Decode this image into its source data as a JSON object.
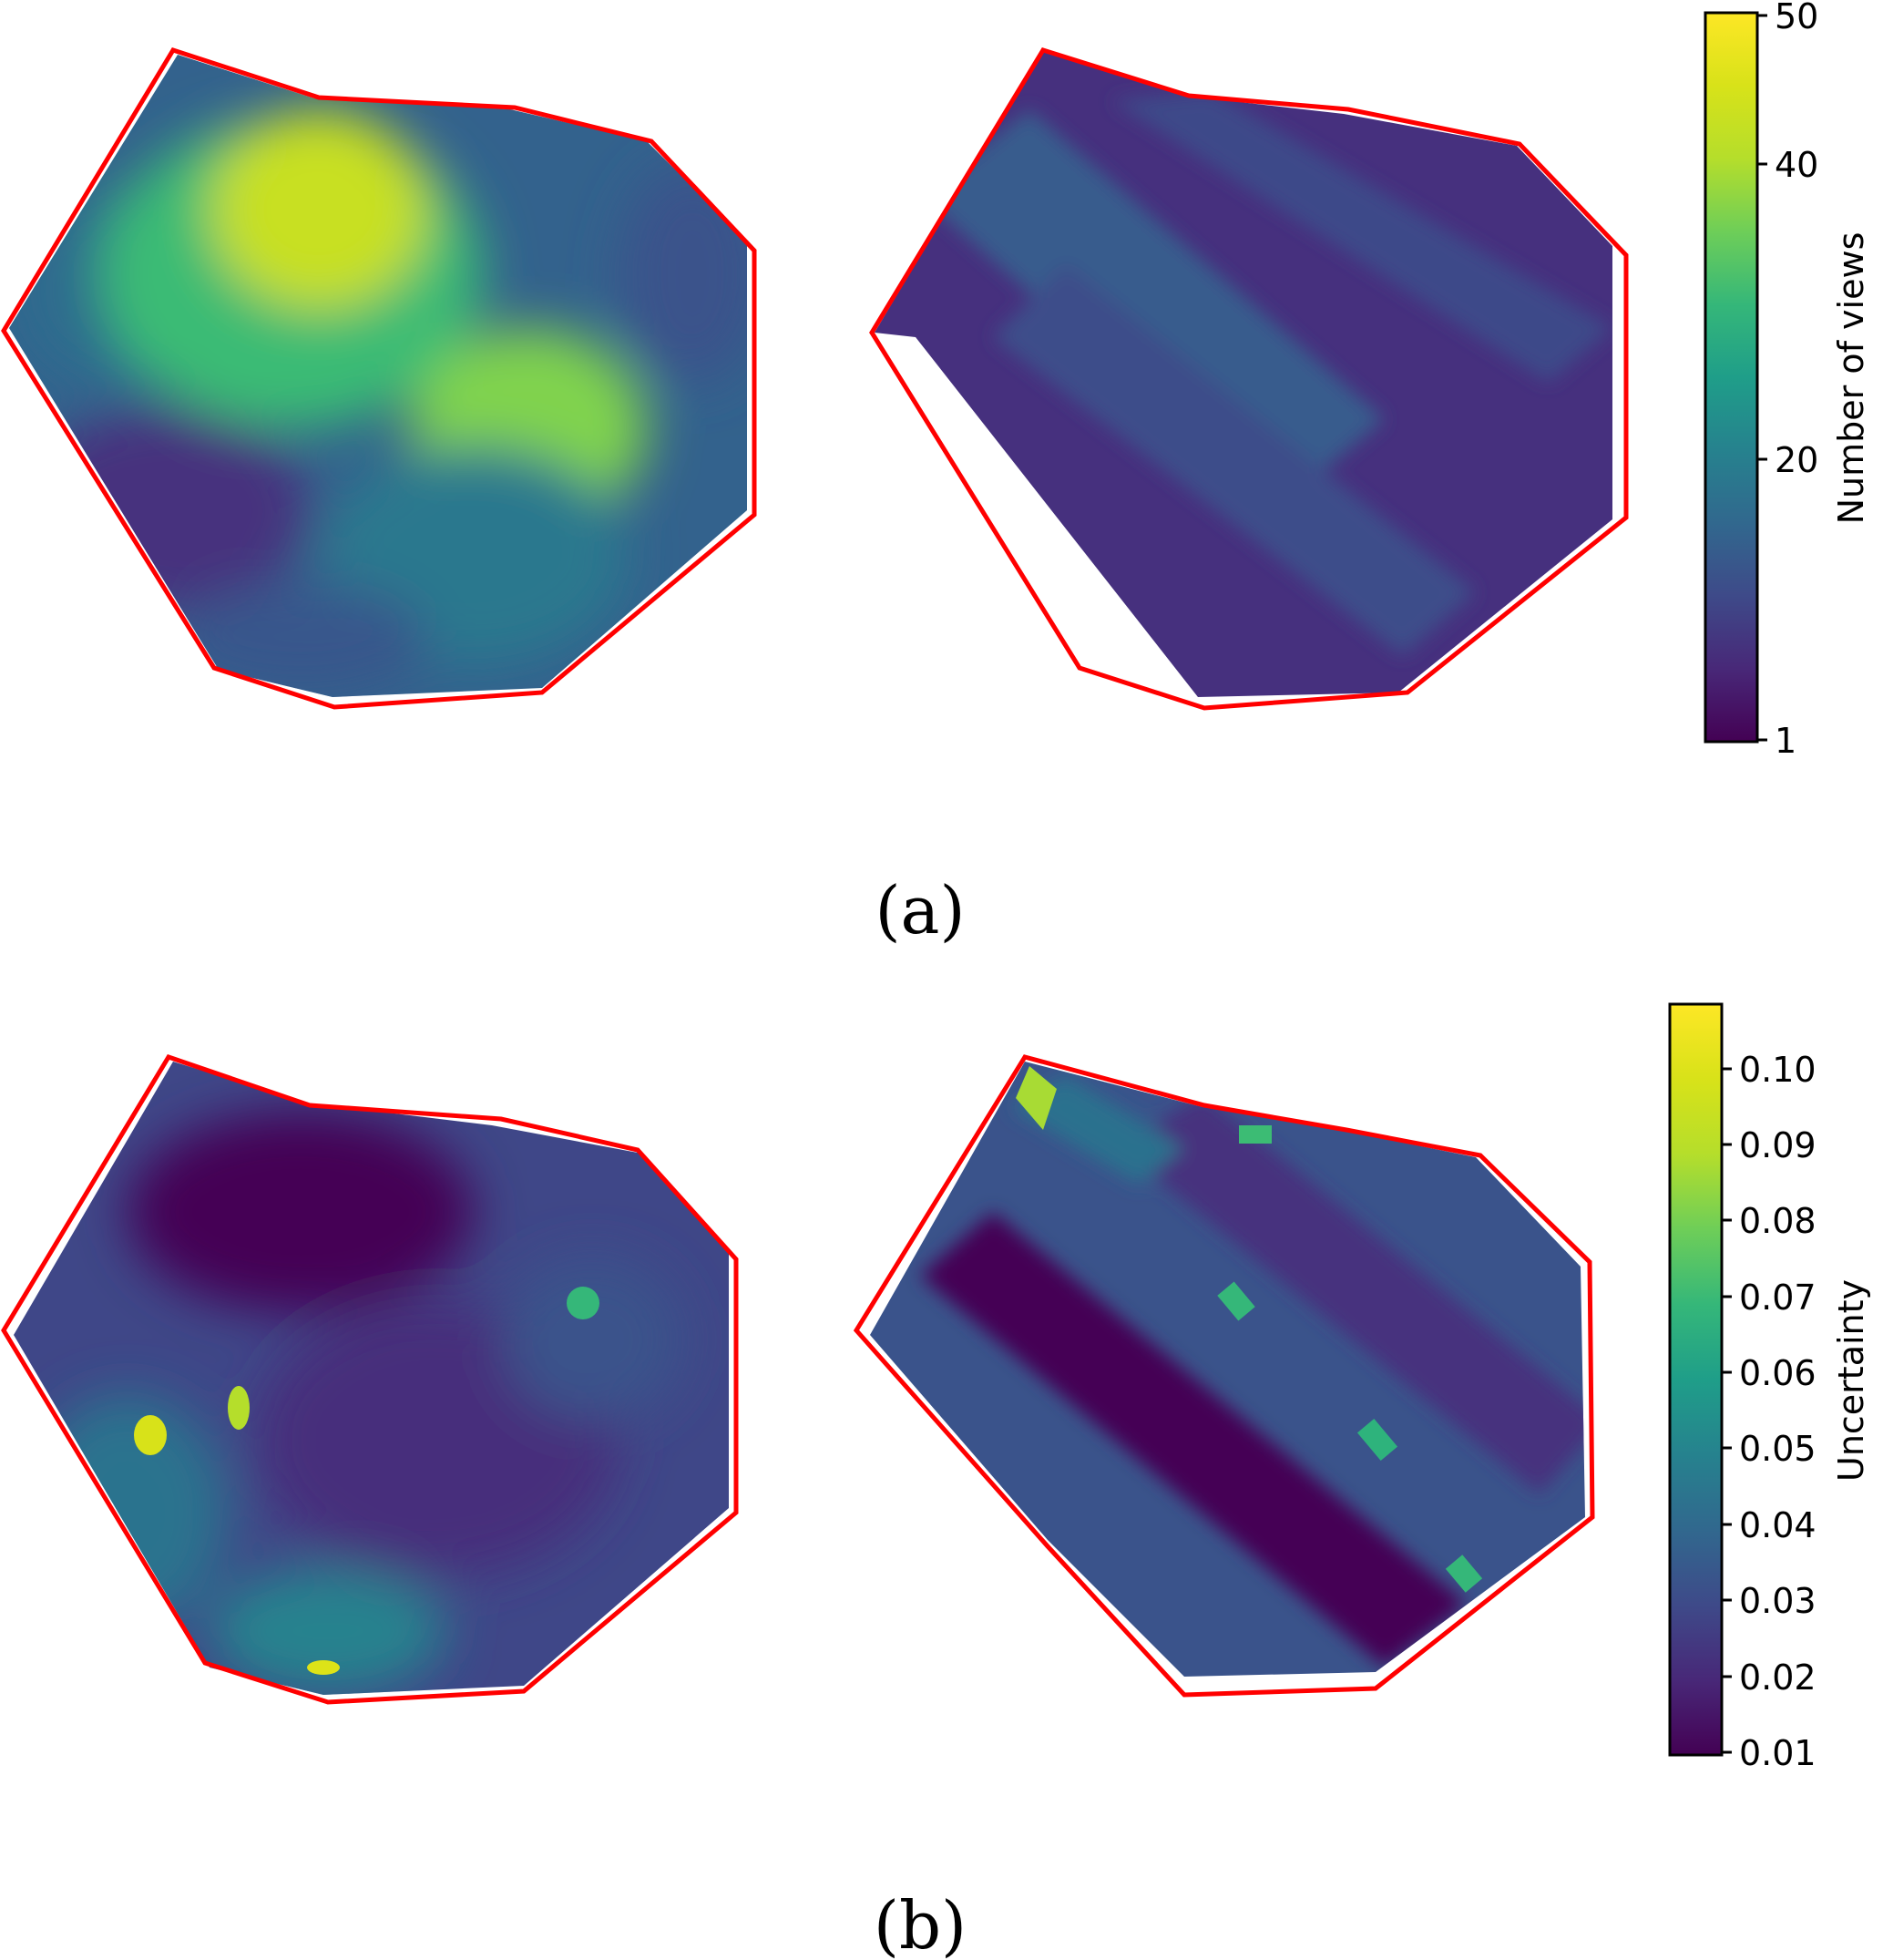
{
  "chart_data": [
    {
      "type": "heatmap",
      "panel": "(a)",
      "caption": "(a)",
      "colormap": "viridis",
      "maps": [
        "left",
        "right"
      ],
      "colorbar": {
        "label": "Number of views",
        "ticks": [
          "1",
          "20",
          "40",
          "50"
        ],
        "tick_values": [
          1,
          20,
          40,
          50
        ],
        "range": [
          1,
          50
        ]
      },
      "boundary_color": "#ff0000"
    },
    {
      "type": "heatmap",
      "panel": "(b)",
      "caption": "(b)",
      "colormap": "viridis",
      "maps": [
        "left",
        "right"
      ],
      "colorbar": {
        "label": "Uncertainty",
        "ticks": [
          "0.01",
          "0.02",
          "0.03",
          "0.04",
          "0.05",
          "0.06",
          "0.07",
          "0.08",
          "0.09",
          "0.10"
        ],
        "tick_values": [
          0.01,
          0.02,
          0.03,
          0.04,
          0.05,
          0.06,
          0.07,
          0.08,
          0.09,
          0.1
        ],
        "range": [
          0.01,
          0.107
        ]
      },
      "boundary_color": "#ff0000"
    }
  ]
}
